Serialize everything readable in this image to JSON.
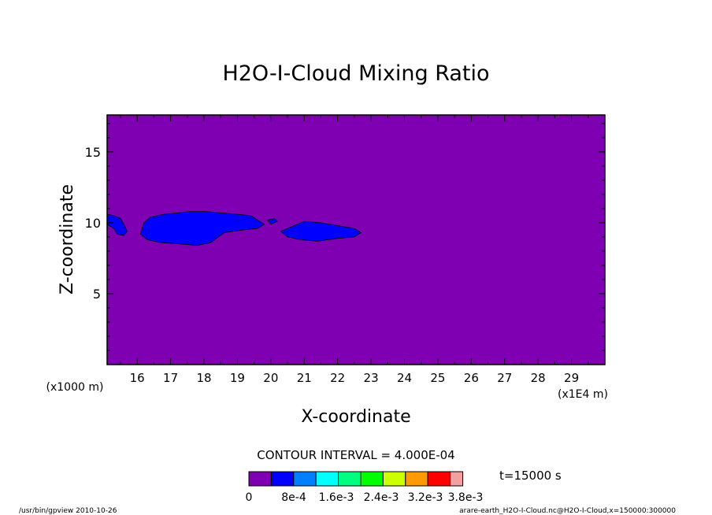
{
  "chart_data": {
    "type": "heatmap",
    "title": "H2O-I-Cloud Mixing Ratio",
    "xlabel": "X-coordinate",
    "ylabel": "Z-coordinate",
    "x_unit_left": "(x1000 m)",
    "x_unit_right": "(x1E4 m)",
    "x_range": [
      15.1,
      30.0
    ],
    "y_range": [
      0.0,
      17.6
    ],
    "x_ticks": [
      "16",
      "17",
      "18",
      "19",
      "20",
      "21",
      "22",
      "23",
      "24",
      "25",
      "26",
      "27",
      "28",
      "29"
    ],
    "y_ticks": [
      "5",
      "10",
      "15"
    ],
    "background_color": "#7f00b2",
    "cloud_color": "#0000ff",
    "cloud_regions": [
      {
        "label": "cloud-region-left",
        "points": [
          [
            15.1,
            10.6
          ],
          [
            15.3,
            10.5
          ],
          [
            15.5,
            10.3
          ],
          [
            15.6,
            9.9
          ],
          [
            15.7,
            9.4
          ],
          [
            15.6,
            9.1
          ],
          [
            15.4,
            9.2
          ],
          [
            15.3,
            9.6
          ],
          [
            15.1,
            9.9
          ]
        ]
      },
      {
        "label": "cloud-region-main",
        "points": [
          [
            16.2,
            10.0
          ],
          [
            16.4,
            10.4
          ],
          [
            16.8,
            10.6
          ],
          [
            17.2,
            10.7
          ],
          [
            17.6,
            10.8
          ],
          [
            18.0,
            10.8
          ],
          [
            18.5,
            10.7
          ],
          [
            19.0,
            10.6
          ],
          [
            19.4,
            10.5
          ],
          [
            19.6,
            10.2
          ],
          [
            19.8,
            9.9
          ],
          [
            19.6,
            9.6
          ],
          [
            19.2,
            9.5
          ],
          [
            18.6,
            9.3
          ],
          [
            18.2,
            8.6
          ],
          [
            17.8,
            8.4
          ],
          [
            17.3,
            8.5
          ],
          [
            16.7,
            8.6
          ],
          [
            16.3,
            8.8
          ],
          [
            16.1,
            9.2
          ]
        ]
      },
      {
        "label": "cloud-region-small",
        "points": [
          [
            19.9,
            10.2
          ],
          [
            20.1,
            10.3
          ],
          [
            20.2,
            10.1
          ],
          [
            20.0,
            9.9
          ]
        ]
      },
      {
        "label": "cloud-region-right",
        "points": [
          [
            20.3,
            9.4
          ],
          [
            20.7,
            9.8
          ],
          [
            21.0,
            10.1
          ],
          [
            21.5,
            10.0
          ],
          [
            22.0,
            9.8
          ],
          [
            22.5,
            9.6
          ],
          [
            22.7,
            9.3
          ],
          [
            22.5,
            9.0
          ],
          [
            22.0,
            8.9
          ],
          [
            21.4,
            8.7
          ],
          [
            20.9,
            8.8
          ],
          [
            20.5,
            9.0
          ]
        ]
      }
    ],
    "contour_interval_label": "CONTOUR INTERVAL = 4.000E-04",
    "time_label": "t=15000 s",
    "legend_colors": [
      "#7f00b2",
      "#0000ff",
      "#0080ff",
      "#00ffff",
      "#00ff80",
      "#00ff00",
      "#ccff00",
      "#ff9900",
      "#ff0000",
      "#f4a0a0"
    ],
    "legend_labels": [
      "0",
      "8e-4",
      "1.6e-3",
      "2.4e-3",
      "3.2e-3",
      "3.8e-3"
    ]
  },
  "footer": {
    "program": "/usr/bin/gpview   2010-10-26",
    "source": "arare-earth_H2O-I-Cloud.nc@H2O-I-Cloud,x=150000:300000"
  }
}
